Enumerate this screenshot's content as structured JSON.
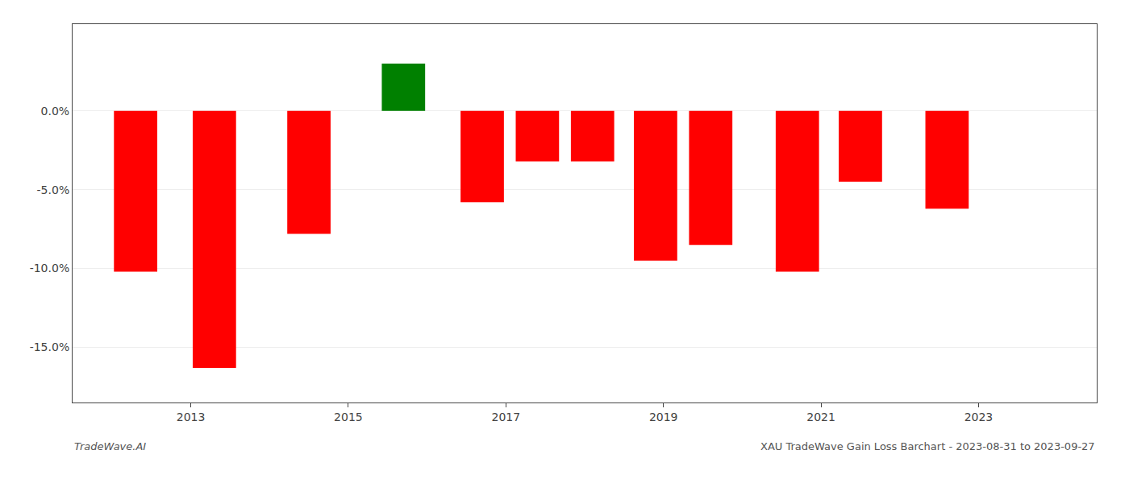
{
  "chart_data": {
    "type": "bar",
    "x": [
      2012.3,
      2013.3,
      2014.5,
      2015.7,
      2016.7,
      2017.4,
      2018.1,
      2018.9,
      2019.6,
      2020.7,
      2021.5,
      2022.6
    ],
    "values": [
      -10.2,
      -16.3,
      -7.8,
      3.0,
      -5.8,
      -3.2,
      -3.2,
      -9.5,
      -8.5,
      -10.2,
      -4.5,
      -6.2
    ],
    "colors": [
      "#ff0000",
      "#ff0000",
      "#ff0000",
      "#008000",
      "#ff0000",
      "#ff0000",
      "#ff0000",
      "#ff0000",
      "#ff0000",
      "#ff0000",
      "#ff0000",
      "#ff0000"
    ],
    "xlim": [
      2011.5,
      2024.5
    ],
    "xticks": [
      2013,
      2015,
      2017,
      2019,
      2021,
      2023
    ],
    "ylim": [
      -18.5,
      5.5
    ],
    "yticks": [
      {
        "value": 0.0,
        "label": "0.0%"
      },
      {
        "value": -5.0,
        "label": "-5.0%"
      },
      {
        "value": -10.0,
        "label": "-10.0%"
      },
      {
        "value": -15.0,
        "label": "-15.0%"
      }
    ],
    "grid": true,
    "annotations": [
      "TradeWave.AI",
      "XAU TradeWave Gain Loss Barchart - 2023-08-31 to 2023-09-27"
    ]
  }
}
